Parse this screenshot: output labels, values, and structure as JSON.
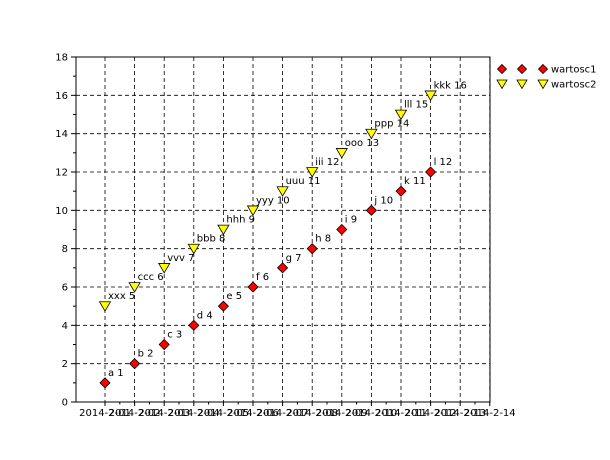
{
  "chart_data": {
    "type": "scatter",
    "ylim": [
      0,
      18
    ],
    "y_ticks": [
      0,
      2,
      4,
      6,
      8,
      10,
      12,
      14,
      16,
      18
    ],
    "x_ticks": [
      "2014-2-01",
      "2014-2-02",
      "2014-2-03",
      "2014-2-04",
      "2014-2-05",
      "2014-2-06",
      "2014-2-07",
      "2014-2-08",
      "2014-2-09",
      "2014-2-10",
      "2014-2-11",
      "2014-2-12",
      "2014-2-13",
      "2014-2-14"
    ],
    "grid": true,
    "legend_position": "top-right-outside",
    "series": [
      {
        "name": "wartosc1",
        "marker": "diamond",
        "color": "#ff0000",
        "points": [
          {
            "x": "2014-2-01",
            "y": 1,
            "label": "a 1"
          },
          {
            "x": "2014-2-02",
            "y": 2,
            "label": "b 2"
          },
          {
            "x": "2014-2-03",
            "y": 3,
            "label": "c 3"
          },
          {
            "x": "2014-2-04",
            "y": 4,
            "label": "d 4"
          },
          {
            "x": "2014-2-05",
            "y": 5,
            "label": "e 5"
          },
          {
            "x": "2014-2-06",
            "y": 6,
            "label": "f 6"
          },
          {
            "x": "2014-2-07",
            "y": 7,
            "label": "g 7"
          },
          {
            "x": "2014-2-08",
            "y": 8,
            "label": "h 8"
          },
          {
            "x": "2014-2-09",
            "y": 9,
            "label": "i 9"
          },
          {
            "x": "2014-2-10",
            "y": 10,
            "label": "j 10"
          },
          {
            "x": "2014-2-11",
            "y": 11,
            "label": "k 11"
          },
          {
            "x": "2014-2-12",
            "y": 12,
            "label": "l 12"
          }
        ]
      },
      {
        "name": "wartosc2",
        "marker": "triangle-down",
        "color": "#ffff00",
        "points": [
          {
            "x": "2014-2-01",
            "y": 5,
            "label": "xxx 5"
          },
          {
            "x": "2014-2-02",
            "y": 6,
            "label": "ccc 6"
          },
          {
            "x": "2014-2-03",
            "y": 7,
            "label": "vvv 7"
          },
          {
            "x": "2014-2-04",
            "y": 8,
            "label": "bbb 8"
          },
          {
            "x": "2014-2-05",
            "y": 9,
            "label": "hhh 9"
          },
          {
            "x": "2014-2-06",
            "y": 10,
            "label": "yyy 10"
          },
          {
            "x": "2014-2-07",
            "y": 11,
            "label": "uuu 11"
          },
          {
            "x": "2014-2-08",
            "y": 12,
            "label": "iii 12"
          },
          {
            "x": "2014-2-09",
            "y": 13,
            "label": "ooo 13"
          },
          {
            "x": "2014-2-10",
            "y": 14,
            "label": "ppp 14"
          },
          {
            "x": "2014-2-11",
            "y": 15,
            "label": "lll 15"
          },
          {
            "x": "2014-2-12",
            "y": 16,
            "label": "kkk 16"
          }
        ]
      }
    ]
  }
}
